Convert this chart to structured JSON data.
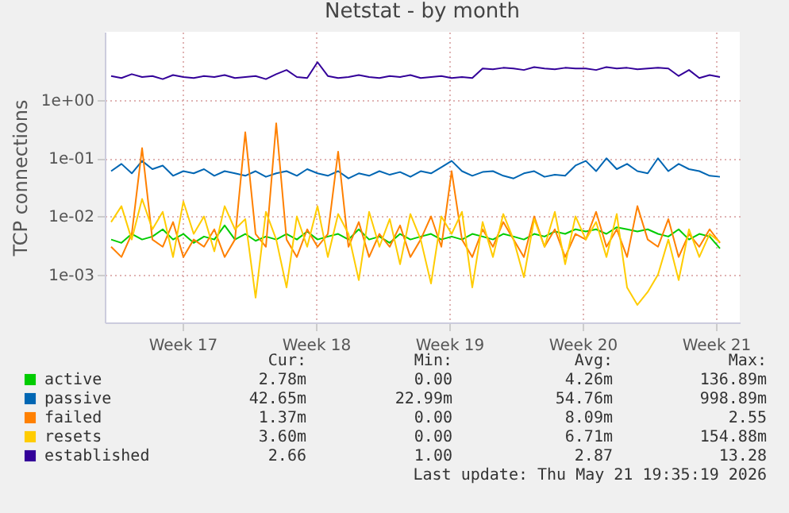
{
  "chart_data": {
    "type": "line",
    "title": "Netstat - by month",
    "ylabel": "TCP connections",
    "x": [
      "2026-04-19T18:00",
      "2026-04-20T07:00",
      "2026-04-20T20:00",
      "2026-04-21T09:00",
      "2026-04-21T22:00",
      "2026-04-22T11:00",
      "2026-04-23T00:00",
      "2026-04-23T13:00",
      "2026-04-24T02:00",
      "2026-04-24T15:00",
      "2026-04-25T04:00",
      "2026-04-25T17:00",
      "2026-04-26T06:00",
      "2026-04-26T19:00",
      "2026-04-27T08:00",
      "2026-04-27T21:00",
      "2026-04-28T10:00",
      "2026-04-28T23:00",
      "2026-04-29T12:00",
      "2026-04-30T01:00",
      "2026-04-30T14:00",
      "2026-05-01T03:00",
      "2026-05-01T16:00",
      "2026-05-02T05:00",
      "2026-05-02T18:00",
      "2026-05-03T07:00",
      "2026-05-03T20:00",
      "2026-05-04T09:00",
      "2026-05-04T22:00",
      "2026-05-05T11:00",
      "2026-05-06T00:00",
      "2026-05-06T13:00",
      "2026-05-07T02:00",
      "2026-05-07T15:00",
      "2026-05-08T04:00",
      "2026-05-08T17:00",
      "2026-05-09T06:00",
      "2026-05-09T19:00",
      "2026-05-10T08:00",
      "2026-05-10T21:00",
      "2026-05-11T10:00",
      "2026-05-11T23:00",
      "2026-05-12T12:00",
      "2026-05-13T01:00",
      "2026-05-13T14:00",
      "2026-05-14T03:00",
      "2026-05-14T16:00",
      "2026-05-15T05:00",
      "2026-05-15T18:00",
      "2026-05-16T07:00",
      "2026-05-16T20:00",
      "2026-05-17T09:00",
      "2026-05-17T22:00",
      "2026-05-18T11:00",
      "2026-05-19T00:00",
      "2026-05-19T13:00",
      "2026-05-20T02:00",
      "2026-05-20T15:00",
      "2026-05-21T04:00",
      "2026-05-21T17:00"
    ],
    "series": [
      {
        "name": "active",
        "color": "#00cc00",
        "values": [
          0.004,
          0.0035,
          0.005,
          0.004,
          0.0045,
          0.006,
          0.004,
          0.005,
          0.0035,
          0.0045,
          0.004,
          0.007,
          0.004,
          0.005,
          0.0038,
          0.0045,
          0.004,
          0.005,
          0.004,
          0.0055,
          0.004,
          0.0045,
          0.005,
          0.004,
          0.006,
          0.004,
          0.0045,
          0.0035,
          0.005,
          0.004,
          0.0045,
          0.005,
          0.004,
          0.0045,
          0.004,
          0.005,
          0.0045,
          0.004,
          0.005,
          0.0045,
          0.004,
          0.005,
          0.0045,
          0.0055,
          0.005,
          0.006,
          0.0055,
          0.006,
          0.005,
          0.0065,
          0.006,
          0.0055,
          0.006,
          0.005,
          0.0045,
          0.006,
          0.004,
          0.005,
          0.0045,
          0.0028
        ]
      },
      {
        "name": "passive",
        "color": "#0066b3",
        "values": [
          0.06,
          0.08,
          0.055,
          0.09,
          0.065,
          0.075,
          0.05,
          0.06,
          0.055,
          0.065,
          0.05,
          0.06,
          0.055,
          0.05,
          0.06,
          0.048,
          0.055,
          0.06,
          0.05,
          0.065,
          0.055,
          0.05,
          0.06,
          0.045,
          0.055,
          0.05,
          0.06,
          0.052,
          0.058,
          0.048,
          0.06,
          0.055,
          0.07,
          0.09,
          0.06,
          0.05,
          0.058,
          0.06,
          0.05,
          0.045,
          0.055,
          0.06,
          0.048,
          0.052,
          0.05,
          0.075,
          0.09,
          0.06,
          0.1,
          0.065,
          0.08,
          0.06,
          0.055,
          0.1,
          0.06,
          0.08,
          0.065,
          0.06,
          0.05,
          0.048
        ]
      },
      {
        "name": "failed",
        "color": "#ff8000",
        "values": [
          0.003,
          0.002,
          0.005,
          0.15,
          0.004,
          0.003,
          0.008,
          0.002,
          0.004,
          0.003,
          0.006,
          0.002,
          0.004,
          0.28,
          0.005,
          0.003,
          0.4,
          0.004,
          0.002,
          0.006,
          0.003,
          0.005,
          0.13,
          0.003,
          0.008,
          0.002,
          0.005,
          0.003,
          0.007,
          0.002,
          0.004,
          0.01,
          0.003,
          0.06,
          0.004,
          0.002,
          0.006,
          0.003,
          0.008,
          0.004,
          0.002,
          0.01,
          0.003,
          0.006,
          0.002,
          0.005,
          0.004,
          0.012,
          0.003,
          0.006,
          0.002,
          0.015,
          0.004,
          0.003,
          0.009,
          0.002,
          0.005,
          0.003,
          0.006,
          0.0035
        ]
      },
      {
        "name": "resets",
        "color": "#ffcc00",
        "values": [
          0.008,
          0.015,
          0.004,
          0.02,
          0.006,
          0.012,
          0.002,
          0.018,
          0.005,
          0.01,
          0.0025,
          0.015,
          0.006,
          0.009,
          0.0004,
          0.012,
          0.004,
          0.0006,
          0.01,
          0.003,
          0.015,
          0.002,
          0.011,
          0.005,
          0.0008,
          0.012,
          0.003,
          0.009,
          0.0015,
          0.011,
          0.004,
          0.0007,
          0.01,
          0.005,
          0.012,
          0.0006,
          0.008,
          0.002,
          0.011,
          0.004,
          0.0009,
          0.009,
          0.003,
          0.012,
          0.0015,
          0.01,
          0.004,
          0.008,
          0.002,
          0.011,
          0.0006,
          0.0003,
          0.0005,
          0.001,
          0.004,
          0.0008,
          0.006,
          0.002,
          0.005,
          0.0036
        ]
      },
      {
        "name": "established",
        "color": "#330099",
        "values": [
          2.6,
          2.4,
          2.8,
          2.5,
          2.6,
          2.3,
          2.7,
          2.5,
          2.4,
          2.6,
          2.5,
          2.7,
          2.4,
          2.5,
          2.6,
          2.3,
          2.8,
          3.3,
          2.5,
          2.4,
          4.5,
          2.6,
          2.4,
          2.5,
          2.7,
          2.5,
          2.4,
          2.6,
          2.5,
          2.7,
          2.4,
          2.5,
          2.6,
          2.4,
          2.5,
          2.4,
          3.5,
          3.4,
          3.6,
          3.5,
          3.3,
          3.7,
          3.5,
          3.4,
          3.6,
          3.5,
          3.5,
          3.3,
          3.7,
          3.5,
          3.6,
          3.4,
          3.5,
          3.6,
          3.5,
          2.6,
          3.3,
          2.4,
          2.7,
          2.5
        ]
      }
    ],
    "xlim": [
      "2026-04-19T10:00",
      "2026-05-22T18:00"
    ],
    "xticks": [
      {
        "value": "2026-04-23T12:00",
        "label": "Week 17"
      },
      {
        "value": "2026-04-30T12:00",
        "label": "Week 18"
      },
      {
        "value": "2026-05-07T12:00",
        "label": "Week 19"
      },
      {
        "value": "2026-05-14T12:00",
        "label": "Week 20"
      },
      {
        "value": "2026-05-21T12:00",
        "label": "Week 21"
      }
    ],
    "ylim": [
      0.00015,
      15
    ],
    "yticks": [
      {
        "value": 1,
        "label": "1e+00"
      },
      {
        "value": 0.1,
        "label": "1e-01"
      },
      {
        "value": 0.01,
        "label": "1e-02"
      },
      {
        "value": 0.001,
        "label": "1e-03"
      }
    ],
    "log": "y",
    "grid": true,
    "legend": "bottom left",
    "annotations": [
      "Cur:",
      "Min:",
      "Avg:",
      "Max:",
      "2.78m",
      "0.00",
      "4.26m",
      "136.89m",
      "42.65m",
      "22.99m",
      "54.76m",
      "998.89m",
      "1.37m",
      "0.00",
      "8.09m",
      "2.55",
      "3.60m",
      "0.00",
      "6.71m",
      "154.88m",
      "2.66",
      "1.00",
      "2.87",
      "13.28",
      "Last update: Thu May 21 19:35:19 2026"
    ]
  }
}
